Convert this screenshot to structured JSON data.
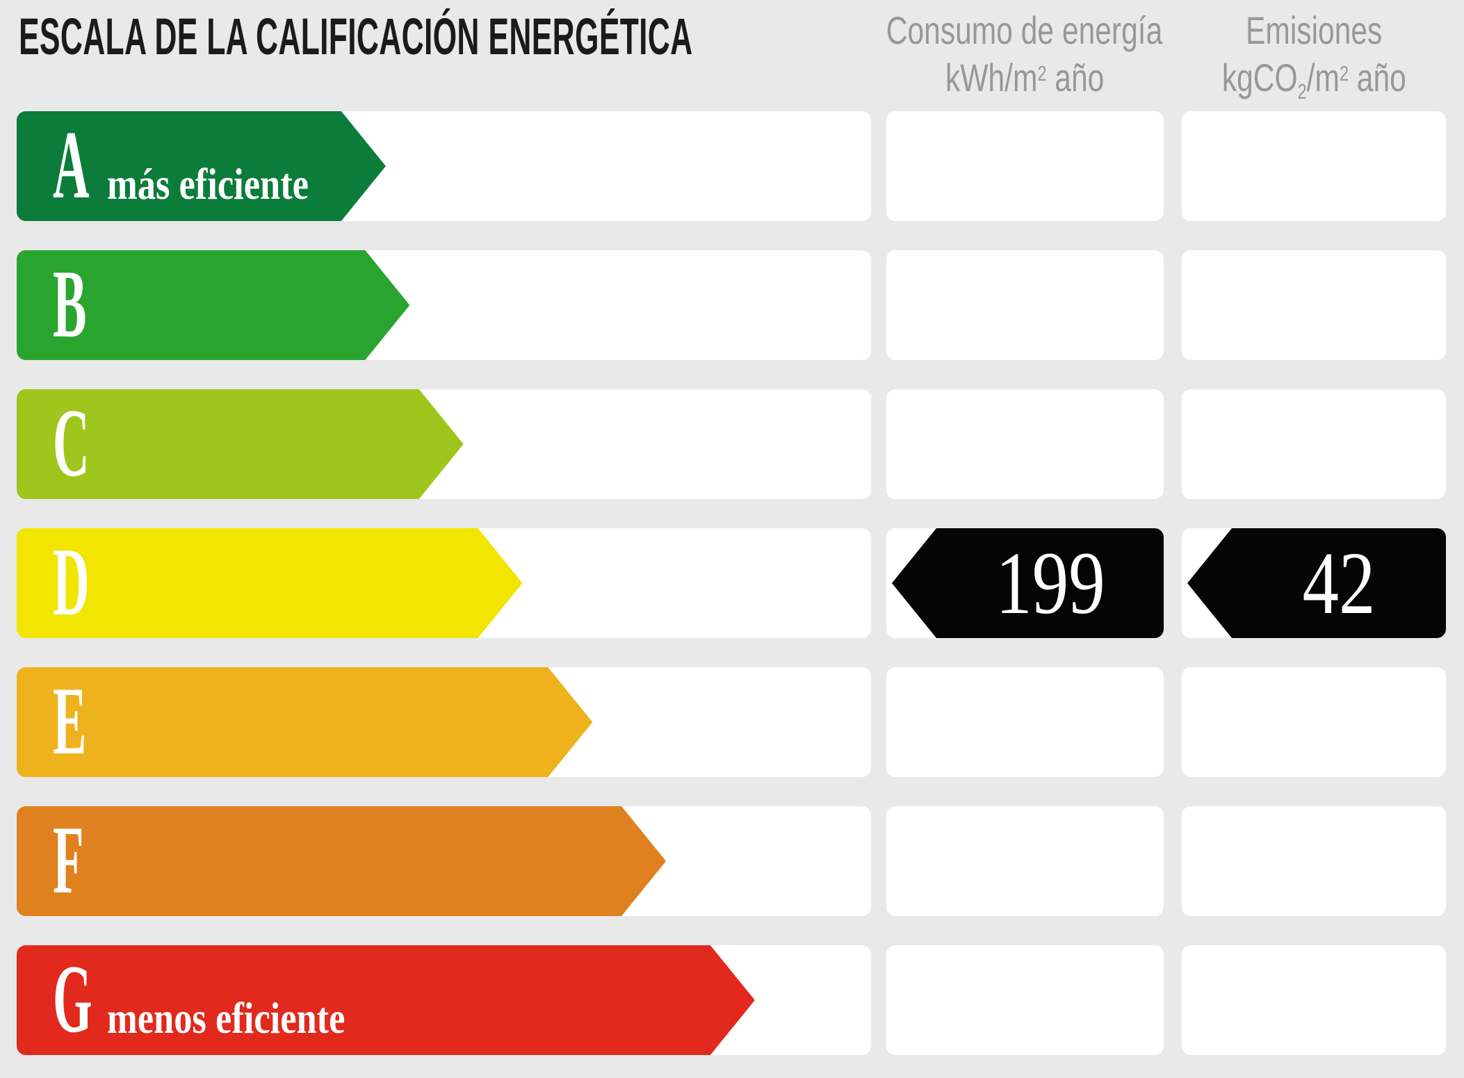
{
  "page": {
    "title": "ESCALA DE LA CALIFICACIÓN ENERGÉTICA"
  },
  "headers": {
    "consumption_line1": "Consumo de energía",
    "consumption_unit_a": "kWh/m",
    "consumption_unit_sup": "2",
    "consumption_unit_b": " año",
    "emissions_line1": "Emisiones",
    "emissions_unit_a": "kgCO",
    "emissions_unit_sub": "2",
    "emissions_unit_b": "/m",
    "emissions_unit_sup": "2",
    "emissions_unit_c": " año"
  },
  "colors": {
    "background": "#e9e9e9",
    "cell": "#ffffff",
    "indicator_black": "#050505",
    "header_text": "#989898",
    "title_text": "#1b1b1b"
  },
  "values": {
    "consumption": "199",
    "emissions": "42"
  },
  "chart_data": {
    "type": "bar",
    "title": "ESCALA DE LA CALIFICACIÓN ENERGÉTICA",
    "xlabel": "",
    "ylabel": "",
    "legend": "none",
    "columns": [
      "Consumo de energía kWh/m² año",
      "Emisiones kgCO₂/m² año"
    ],
    "rows": [
      {
        "letter": "A",
        "label": "más eficiente",
        "color": "#0c7c3b",
        "width_pct": 43.2
      },
      {
        "letter": "B",
        "label": "",
        "color": "#29a52f",
        "width_pct": 46.0
      },
      {
        "letter": "C",
        "label": "",
        "color": "#a0c51d",
        "width_pct": 52.3
      },
      {
        "letter": "D",
        "label": "",
        "color": "#f2e500",
        "width_pct": 59.2
      },
      {
        "letter": "E",
        "label": "",
        "color": "#eeb21d",
        "width_pct": 67.4
      },
      {
        "letter": "F",
        "label": "",
        "color": "#e0811f",
        "width_pct": 76.0
      },
      {
        "letter": "G",
        "label": "menos eficiente",
        "color": "#e2291d",
        "width_pct": 86.4
      }
    ],
    "indicator": {
      "rating": "D",
      "consumption_kwh_m2_year": 199,
      "emissions_kgco2_m2_year": 42
    }
  }
}
